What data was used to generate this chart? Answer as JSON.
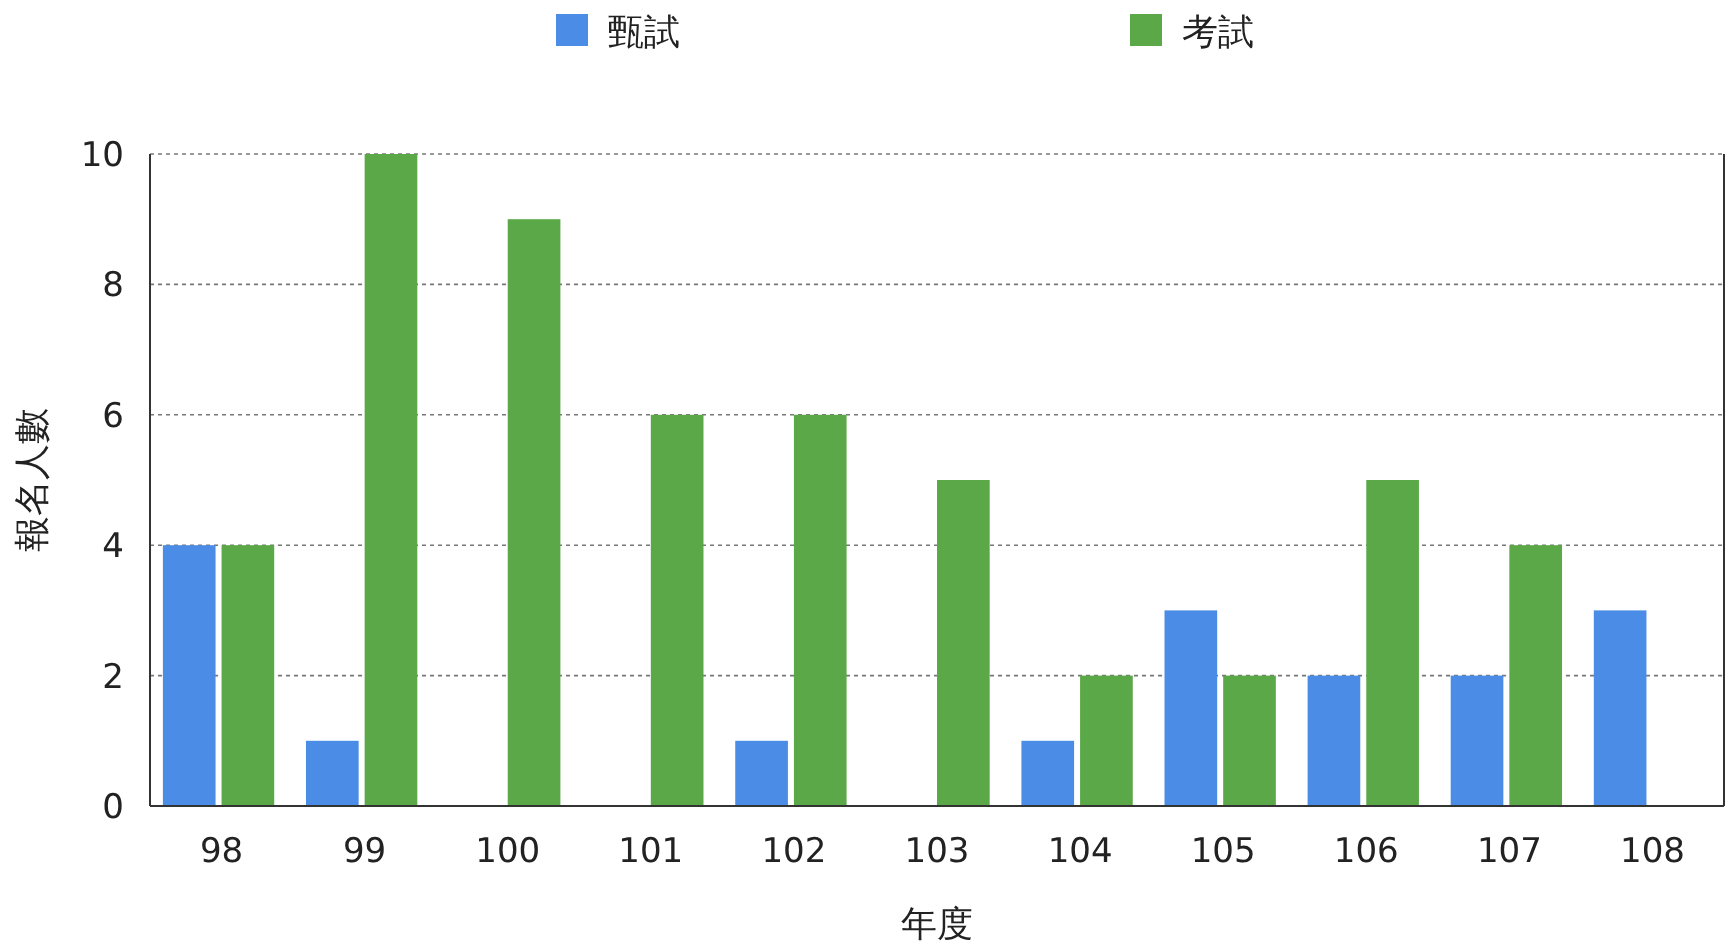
{
  "chart_data": {
    "type": "bar",
    "xlabel": "年度",
    "ylabel": "報名人數",
    "categories": [
      "98",
      "99",
      "100",
      "101",
      "102",
      "103",
      "104",
      "105",
      "106",
      "107",
      "108"
    ],
    "series": [
      {
        "name": "甄試",
        "color": "#4a8ce6",
        "values": [
          4,
          1,
          null,
          null,
          1,
          null,
          1,
          3,
          2,
          2,
          3
        ]
      },
      {
        "name": "考試",
        "color": "#5aa847",
        "values": [
          4,
          10,
          9,
          6,
          6,
          5,
          2,
          2,
          5,
          4,
          null
        ]
      }
    ],
    "ylim": [
      0,
      10
    ],
    "yticks": [
      0,
      2,
      4,
      6,
      8,
      10
    ],
    "grid": "y",
    "legend": "top"
  }
}
